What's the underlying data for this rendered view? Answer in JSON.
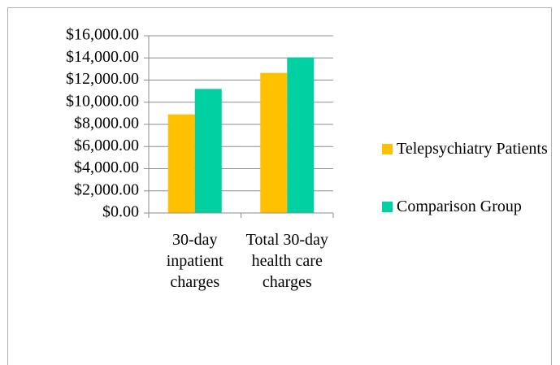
{
  "chart_data": {
    "type": "bar",
    "categories": [
      "30-day inpatient charges",
      "Total 30-day health care charges"
    ],
    "series": [
      {
        "name": "Telepsychiatry Patients",
        "color": "#ffc000",
        "values": [
          8900,
          12650
        ]
      },
      {
        "name": "Comparison Group",
        "color": "#00d0a2",
        "values": [
          11200,
          14050
        ]
      }
    ],
    "ylim": [
      0,
      16000
    ],
    "yticks": [
      {
        "value": 0,
        "label": "$0.00"
      },
      {
        "value": 2000,
        "label": "$2,000.00"
      },
      {
        "value": 4000,
        "label": "$4,000.00"
      },
      {
        "value": 6000,
        "label": "$6,000.00"
      },
      {
        "value": 8000,
        "label": "$8,000.00"
      },
      {
        "value": 10000,
        "label": "$10,000.00"
      },
      {
        "value": 12000,
        "label": "$12,000.00"
      },
      {
        "value": 14000,
        "label": "$14,000.00"
      },
      {
        "value": 16000,
        "label": "$16,000.00"
      }
    ],
    "grid": true,
    "legend": "right"
  }
}
